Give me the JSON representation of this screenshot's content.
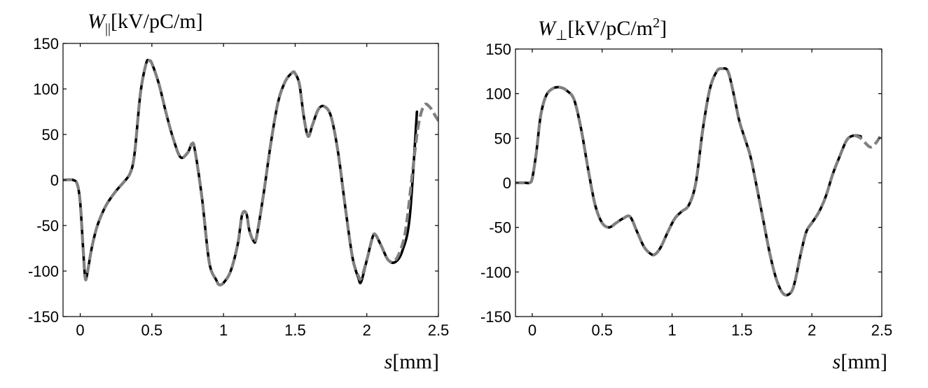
{
  "chart_data": [
    {
      "type": "line",
      "ylabel": {
        "symbol": "W",
        "sub": "||",
        "unit": "[kV/pC/m]",
        "sup": ""
      },
      "xlabel": {
        "symbol": "s",
        "unit": "[mm]"
      },
      "xlim": [
        -0.12,
        2.5
      ],
      "ylim": [
        -150,
        150
      ],
      "xticks": [
        0,
        0.5,
        1,
        1.5,
        2,
        2.5
      ],
      "xtick_labels": [
        "0",
        "0.5",
        "1",
        "1.5",
        "2",
        "2.5"
      ],
      "yticks": [
        -150,
        -100,
        -50,
        0,
        50,
        100,
        150
      ],
      "ytick_labels": [
        "-150",
        "-100",
        "-50",
        "0",
        "50",
        "100",
        "150"
      ],
      "grid": false,
      "series": [
        {
          "style": "solid",
          "color": "#000000",
          "x": [
            -0.12,
            -0.05,
            -0.02,
            0.0,
            0.02,
            0.035,
            0.05,
            0.08,
            0.12,
            0.18,
            0.25,
            0.3,
            0.35,
            0.38,
            0.42,
            0.46,
            0.48,
            0.5,
            0.55,
            0.6,
            0.65,
            0.7,
            0.75,
            0.78,
            0.8,
            0.85,
            0.9,
            0.95,
            0.97,
            1.0,
            1.05,
            1.1,
            1.13,
            1.16,
            1.18,
            1.21,
            1.23,
            1.28,
            1.33,
            1.38,
            1.43,
            1.48,
            1.5,
            1.53,
            1.56,
            1.59,
            1.62,
            1.66,
            1.7,
            1.75,
            1.8,
            1.85,
            1.9,
            1.94,
            1.96,
            2.0,
            2.04,
            2.06,
            2.1,
            2.15,
            2.2,
            2.25,
            2.3,
            2.35
          ],
          "y": [
            0,
            0,
            -5,
            -25,
            -75,
            -108,
            -102,
            -75,
            -50,
            -28,
            -12,
            -3,
            8,
            30,
            95,
            128,
            131,
            128,
            105,
            73,
            45,
            25,
            30,
            40,
            33,
            -20,
            -90,
            -110,
            -115,
            -113,
            -100,
            -70,
            -38,
            -37,
            -55,
            -67,
            -63,
            -15,
            40,
            85,
            108,
            118,
            117,
            105,
            70,
            48,
            60,
            77,
            81,
            70,
            30,
            -30,
            -85,
            -107,
            -112,
            -88,
            -63,
            -60,
            -72,
            -88,
            -90,
            -77,
            -40,
            75
          ]
        },
        {
          "style": "dashed",
          "color": "#808080",
          "x": [
            -0.12,
            -0.05,
            -0.02,
            0.0,
            0.02,
            0.035,
            0.05,
            0.08,
            0.12,
            0.18,
            0.25,
            0.3,
            0.35,
            0.38,
            0.42,
            0.46,
            0.48,
            0.5,
            0.55,
            0.6,
            0.65,
            0.7,
            0.75,
            0.78,
            0.8,
            0.85,
            0.9,
            0.95,
            0.97,
            1.0,
            1.05,
            1.1,
            1.13,
            1.16,
            1.18,
            1.21,
            1.23,
            1.28,
            1.33,
            1.38,
            1.43,
            1.48,
            1.5,
            1.53,
            1.56,
            1.59,
            1.62,
            1.66,
            1.7,
            1.75,
            1.8,
            1.85,
            1.9,
            1.94,
            1.96,
            2.0,
            2.04,
            2.06,
            2.1,
            2.15,
            2.2,
            2.25,
            2.28,
            2.32,
            2.36,
            2.4,
            2.44,
            2.48,
            2.5
          ],
          "y": [
            0,
            0,
            -5,
            -25,
            -75,
            -108,
            -102,
            -75,
            -50,
            -28,
            -12,
            -3,
            8,
            30,
            95,
            128,
            131,
            128,
            105,
            73,
            45,
            25,
            30,
            40,
            33,
            -20,
            -90,
            -110,
            -115,
            -113,
            -100,
            -70,
            -38,
            -37,
            -55,
            -67,
            -63,
            -15,
            40,
            85,
            108,
            118,
            117,
            105,
            70,
            48,
            60,
            77,
            81,
            70,
            30,
            -30,
            -85,
            -105,
            -108,
            -88,
            -63,
            -60,
            -72,
            -88,
            -88,
            -70,
            -45,
            10,
            60,
            82,
            80,
            70,
            65
          ]
        }
      ]
    },
    {
      "type": "line",
      "ylabel": {
        "symbol": "W",
        "sub": "⊥",
        "unit": "[kV/pC/m",
        "sup": "2",
        "close": "]"
      },
      "xlabel": {
        "symbol": "s",
        "unit": "[mm]"
      },
      "xlim": [
        -0.12,
        2.5
      ],
      "ylim": [
        -150,
        150
      ],
      "xticks": [
        0,
        0.5,
        1,
        1.5,
        2,
        2.5
      ],
      "xtick_labels": [
        "0",
        "0.5",
        "1",
        "1.5",
        "2",
        "2.5"
      ],
      "yticks": [
        -150,
        -100,
        -50,
        0,
        50,
        100,
        150
      ],
      "ytick_labels": [
        "-150",
        "-100",
        "-50",
        "0",
        "50",
        "100",
        "150"
      ],
      "grid": false,
      "series": [
        {
          "style": "solid",
          "color": "#000000",
          "x": [
            -0.12,
            -0.05,
            -0.02,
            0.0,
            0.03,
            0.06,
            0.1,
            0.15,
            0.2,
            0.25,
            0.3,
            0.35,
            0.4,
            0.45,
            0.5,
            0.55,
            0.6,
            0.65,
            0.7,
            0.75,
            0.8,
            0.85,
            0.88,
            0.92,
            0.97,
            1.02,
            1.07,
            1.12,
            1.17,
            1.22,
            1.27,
            1.32,
            1.36,
            1.4,
            1.44,
            1.48,
            1.52,
            1.56,
            1.6,
            1.65,
            1.7,
            1.75,
            1.8,
            1.85,
            1.88,
            1.92,
            1.96,
            2.0,
            2.05,
            2.1,
            2.15,
            2.2,
            2.25,
            2.3,
            2.35
          ],
          "y": [
            0,
            0,
            0,
            5,
            35,
            75,
            98,
            106,
            107,
            103,
            93,
            60,
            15,
            -25,
            -45,
            -50,
            -45,
            -40,
            -38,
            -55,
            -72,
            -80,
            -80,
            -72,
            -55,
            -40,
            -32,
            -25,
            0,
            60,
            105,
            125,
            128,
            125,
            100,
            70,
            50,
            30,
            0,
            -40,
            -80,
            -110,
            -125,
            -123,
            -110,
            -80,
            -55,
            -45,
            -33,
            -15,
            10,
            30,
            48,
            53,
            52
          ]
        },
        {
          "style": "dashed",
          "color": "#808080",
          "x": [
            -0.12,
            -0.05,
            -0.02,
            0.0,
            0.03,
            0.06,
            0.1,
            0.15,
            0.2,
            0.25,
            0.3,
            0.35,
            0.4,
            0.45,
            0.5,
            0.55,
            0.6,
            0.65,
            0.7,
            0.75,
            0.8,
            0.85,
            0.88,
            0.92,
            0.97,
            1.02,
            1.07,
            1.12,
            1.17,
            1.22,
            1.27,
            1.32,
            1.36,
            1.4,
            1.44,
            1.48,
            1.52,
            1.56,
            1.6,
            1.65,
            1.7,
            1.75,
            1.8,
            1.85,
            1.88,
            1.92,
            1.96,
            2.0,
            2.05,
            2.1,
            2.15,
            2.2,
            2.25,
            2.3,
            2.35,
            2.38,
            2.42,
            2.46,
            2.5
          ],
          "y": [
            0,
            0,
            0,
            5,
            35,
            75,
            98,
            106,
            107,
            103,
            93,
            60,
            15,
            -25,
            -45,
            -50,
            -45,
            -40,
            -38,
            -55,
            -72,
            -80,
            -80,
            -72,
            -55,
            -40,
            -32,
            -25,
            0,
            60,
            105,
            125,
            128,
            125,
            100,
            70,
            50,
            30,
            0,
            -40,
            -80,
            -110,
            -125,
            -123,
            -110,
            -80,
            -55,
            -45,
            -33,
            -15,
            10,
            30,
            48,
            53,
            50,
            45,
            40,
            45,
            55
          ]
        }
      ]
    }
  ]
}
